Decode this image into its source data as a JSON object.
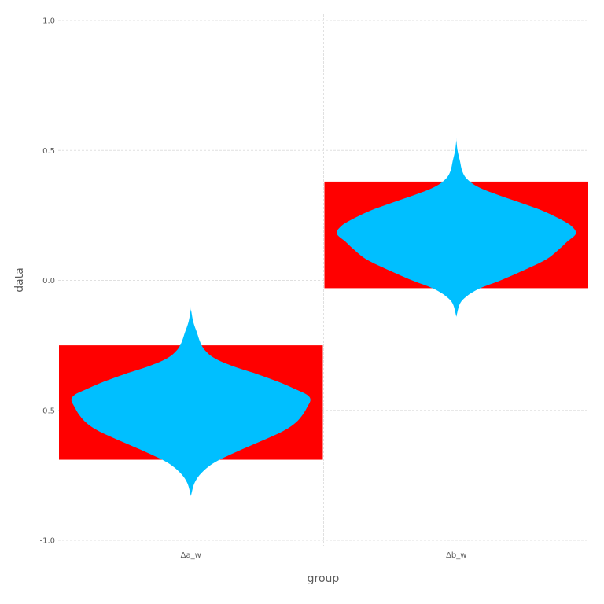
{
  "chart_data": {
    "type": "violin",
    "xlabel": "group",
    "ylabel": "data",
    "ylim": [
      -1.0,
      1.0
    ],
    "yticks": [
      {
        "value": -1.0,
        "label": "-1.0"
      },
      {
        "value": -0.5,
        "label": "-0.5"
      },
      {
        "value": 0.0,
        "label": "0.0"
      },
      {
        "value": 0.5,
        "label": "0.5"
      },
      {
        "value": 1.0,
        "label": "1.0"
      }
    ],
    "categories": [
      "Δa_w",
      "Δb_w"
    ],
    "grid": true,
    "colors": {
      "box": "#ff0000",
      "violin": "#00bfff",
      "grid": "#e0e0e0",
      "text": "#5c5c5c"
    },
    "groups": [
      {
        "category": "Δa_w",
        "box_low": -0.69,
        "box_high": -0.25,
        "violin_min": -0.83,
        "violin_max": -0.11,
        "violin_profile": [
          [
            -0.83,
            0.0
          ],
          [
            -0.78,
            0.03
          ],
          [
            -0.74,
            0.09
          ],
          [
            -0.7,
            0.2
          ],
          [
            -0.66,
            0.38
          ],
          [
            -0.62,
            0.58
          ],
          [
            -0.58,
            0.77
          ],
          [
            -0.55,
            0.87
          ],
          [
            -0.52,
            0.93
          ],
          [
            -0.49,
            0.97
          ],
          [
            -0.46,
            1.0
          ],
          [
            -0.44,
            0.97
          ],
          [
            -0.42,
            0.88
          ],
          [
            -0.39,
            0.73
          ],
          [
            -0.36,
            0.55
          ],
          [
            -0.33,
            0.35
          ],
          [
            -0.3,
            0.2
          ],
          [
            -0.27,
            0.12
          ],
          [
            -0.24,
            0.08
          ],
          [
            -0.2,
            0.05
          ],
          [
            -0.16,
            0.02
          ],
          [
            -0.11,
            0.0
          ]
        ]
      },
      {
        "category": "Δb_w",
        "box_low": -0.03,
        "box_high": 0.38,
        "violin_min": -0.14,
        "violin_max": 0.54,
        "violin_profile": [
          [
            -0.14,
            0.0
          ],
          [
            -0.09,
            0.03
          ],
          [
            -0.06,
            0.09
          ],
          [
            -0.03,
            0.2
          ],
          [
            0.0,
            0.37
          ],
          [
            0.04,
            0.57
          ],
          [
            0.08,
            0.75
          ],
          [
            0.12,
            0.86
          ],
          [
            0.15,
            0.93
          ],
          [
            0.18,
            1.0
          ],
          [
            0.21,
            0.96
          ],
          [
            0.24,
            0.85
          ],
          [
            0.27,
            0.71
          ],
          [
            0.3,
            0.53
          ],
          [
            0.33,
            0.34
          ],
          [
            0.36,
            0.18
          ],
          [
            0.39,
            0.09
          ],
          [
            0.42,
            0.05
          ],
          [
            0.46,
            0.03
          ],
          [
            0.5,
            0.01
          ],
          [
            0.54,
            0.0
          ]
        ]
      }
    ]
  }
}
